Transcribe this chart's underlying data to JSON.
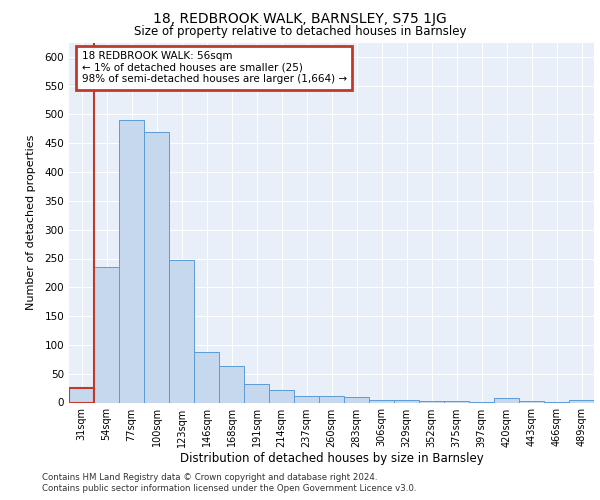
{
  "title1": "18, REDBROOK WALK, BARNSLEY, S75 1JG",
  "title2": "Size of property relative to detached houses in Barnsley",
  "xlabel": "Distribution of detached houses by size in Barnsley",
  "ylabel": "Number of detached properties",
  "categories": [
    "31sqm",
    "54sqm",
    "77sqm",
    "100sqm",
    "123sqm",
    "146sqm",
    "168sqm",
    "191sqm",
    "214sqm",
    "237sqm",
    "260sqm",
    "283sqm",
    "306sqm",
    "329sqm",
    "352sqm",
    "375sqm",
    "397sqm",
    "420sqm",
    "443sqm",
    "466sqm",
    "489sqm"
  ],
  "values": [
    25,
    235,
    490,
    470,
    248,
    88,
    63,
    32,
    22,
    12,
    11,
    9,
    5,
    4,
    2,
    2,
    1,
    7,
    3,
    1,
    4
  ],
  "bar_color": "#c5d8ed",
  "bar_edge_color": "#5b9bd5",
  "annotation_text": "18 REDBROOK WALK: 56sqm\n← 1% of detached houses are smaller (25)\n98% of semi-detached houses are larger (1,664) →",
  "annotation_box_color": "white",
  "annotation_box_edge_color": "#c0392b",
  "ylim": [
    0,
    625
  ],
  "yticks": [
    0,
    50,
    100,
    150,
    200,
    250,
    300,
    350,
    400,
    450,
    500,
    550,
    600
  ],
  "footer1": "Contains HM Land Registry data © Crown copyright and database right 2024.",
  "footer2": "Contains public sector information licensed under the Open Government Licence v3.0.",
  "bg_color": "#e8eff8",
  "grid_color": "white",
  "vline_color": "#c0392b",
  "red_bar_index": 0,
  "red_bar_edge_color": "#c0392b"
}
